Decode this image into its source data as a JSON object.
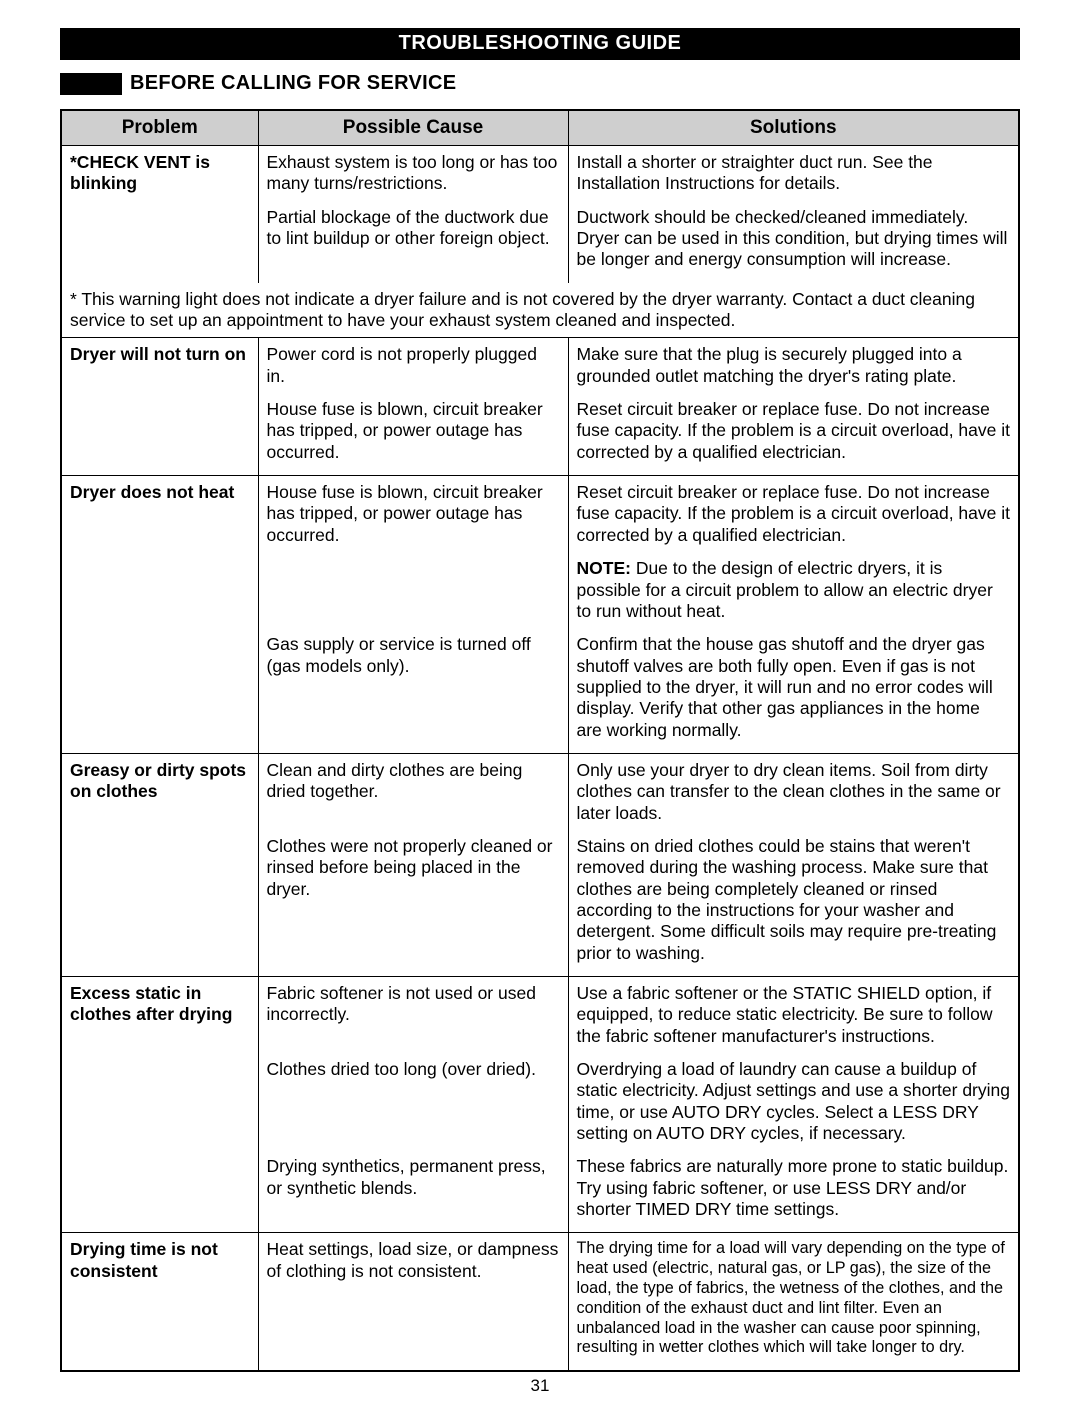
{
  "title": "TROUBLESHOOTING GUIDE",
  "subtitle": "BEFORE CALLING FOR SERVICE",
  "headers": {
    "problem": "Problem",
    "cause": "Possible Cause",
    "solution": "Solutions"
  },
  "rows": [
    {
      "problem": "*CHECK VENT is blinking",
      "cause": "Exhaust system is too long or has too many turns/restrictions.",
      "solution": "Install a shorter or straighter duct run. See the Installation Instructions for details."
    },
    {
      "problem": "",
      "cause": "Partial blockage of the ductwork due to lint buildup or other foreign object.",
      "solution": "Ductwork should be checked/cleaned immediately. Dryer can be used in this condition, but drying times will be longer and energy consumption will increase."
    }
  ],
  "note": "* This warning light does not indicate a dryer failure and is not covered by the dryer warranty. Contact a duct cleaning service to set up an appointment to have your exhaust system cleaned and inspected.",
  "rows2": [
    {
      "section": true,
      "problem": "Dryer will not turn on",
      "cause": "Power cord is not properly plugged in.",
      "solution": "Make sure that the plug is securely plugged into a grounded outlet matching the dryer's rating plate."
    },
    {
      "problem": "",
      "cause": "House fuse is blown, circuit breaker has tripped, or power outage has occurred.",
      "solution": "Reset circuit breaker or replace fuse. Do not increase fuse capacity. If the problem is a circuit overload, have it corrected by a qualified electrician."
    },
    {
      "section": true,
      "problem": "Dryer does not heat",
      "cause": "House fuse is blown, circuit breaker has tripped, or power outage has occurred.",
      "solution": "Reset circuit breaker or replace fuse. Do not increase fuse capacity. If the problem is a circuit overload, have it corrected by a qualified electrician."
    },
    {
      "problem": "",
      "cause": "",
      "solution_prefix": "NOTE:",
      "solution": " Due to the design of electric dryers, it is possible for a circuit problem to allow an electric dryer to run without heat."
    },
    {
      "problem": "",
      "cause": "Gas supply or service is turned off (gas models only).",
      "solution": "Confirm that the house gas shutoff and the dryer gas shutoff valves are both fully open. Even if gas is not supplied to the dryer, it will run and no error codes will display. Verify that other gas appliances in the home are working normally."
    },
    {
      "section": true,
      "problem": "Greasy or dirty spots on clothes",
      "cause": "Clean and dirty clothes are being dried together.",
      "solution": "Only use your dryer to dry clean items. Soil from dirty clothes can transfer to the clean clothes in the same or later loads."
    },
    {
      "problem": "",
      "cause": "Clothes were not properly cleaned or rinsed before being placed in the dryer.",
      "solution": "Stains on dried clothes could be stains that weren't removed during the washing process. Make sure that clothes are being completely cleaned or rinsed according to the instructions for your washer and detergent. Some difficult soils may require pre-treating prior to washing."
    },
    {
      "section": true,
      "problem": "Excess static in clothes after drying",
      "cause": "Fabric softener is not used or used incorrectly.",
      "solution": "Use a fabric softener or the STATIC SHIELD option, if equipped, to reduce static electricity. Be sure to follow the fabric softener manufacturer's instructions."
    },
    {
      "problem": "",
      "cause": "Clothes dried too long (over dried).",
      "solution": "Overdrying a load of laundry can cause a buildup of static electricity. Adjust settings and use a shorter drying time, or use AUTO DRY cycles. Select a LESS DRY setting on AUTO DRY cycles, if necessary."
    },
    {
      "problem": "",
      "cause": "Drying synthetics, permanent press, or synthetic blends.",
      "solution": "These fabrics are naturally more prone to static buildup. Try using fabric softener, or use LESS DRY and/or shorter TIMED DRY time settings."
    },
    {
      "section": true,
      "problem": "Drying time is not consistent",
      "cause": "Heat settings, load size, or dampness of clothing is not consistent.",
      "solution": "The drying time for a load will vary depending on the type of heat used (electric, natural gas, or LP gas), the size of the load, the type of fabrics, the wetness of the clothes, and the condition of the exhaust duct and lint filter. Even an unbalanced load in the washer can cause poor spinning, resulting in wetter clothes which will take longer to dry.",
      "sol_size": "16.2px"
    }
  ],
  "page_number": "31",
  "colors": {
    "header_bg": "#cfcfcf",
    "black": "#000000",
    "white": "#ffffff"
  }
}
